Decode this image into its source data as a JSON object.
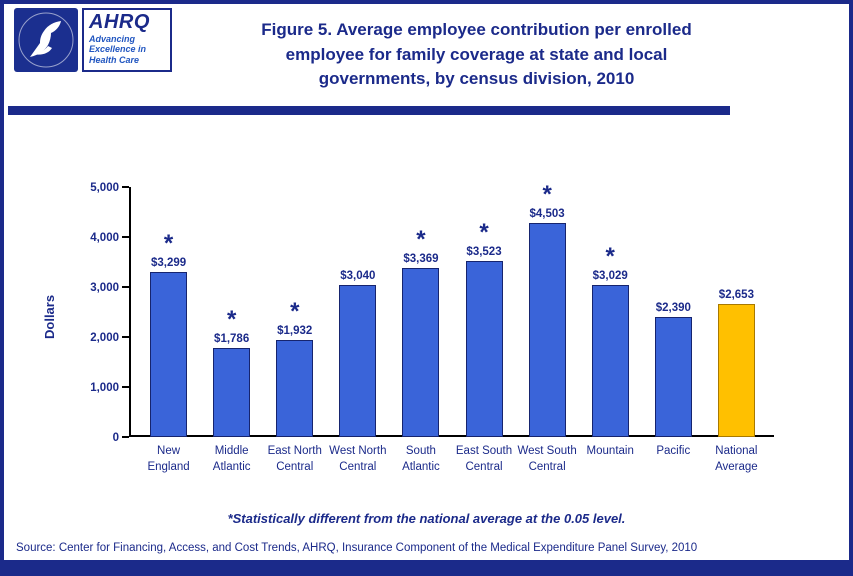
{
  "page": {
    "title": "Figure 5. Average employee contribution per enrolled\nemployee for family coverage at state and local\ngovernments, by census division, 2010",
    "footnote": "*Statistically different from the national average at the 0.05 level.",
    "source": "Source: Center for Financing, Access, and Cost Trends, AHRQ, Insurance Component of the Medical Expenditure Panel Survey, 2010"
  },
  "logos": {
    "hhs_icon": "hhs-eagle-seal",
    "ahrq": {
      "name": "AHRQ",
      "tagline": "Advancing\nExcellence in\nHealth Care"
    }
  },
  "chart_data": {
    "type": "bar",
    "title": "Figure 5. Average employee contribution per enrolled employee for family coverage at state and local governments, by census division, 2010",
    "xlabel": "",
    "ylabel": "Dollars",
    "ylim": [
      0,
      5000
    ],
    "yticks": [
      0,
      1000,
      2000,
      3000,
      4000,
      5000
    ],
    "ytick_labels": [
      "0",
      "1,000",
      "2,000",
      "3,000",
      "4,000",
      "5,000"
    ],
    "categories": [
      "New England",
      "Middle Atlantic",
      "East North Central",
      "West North Central",
      "South Atlantic",
      "East South Central",
      "West South Central",
      "Mountain",
      "Pacific",
      "National Average"
    ],
    "category_labels": [
      "New\nEngland",
      "Middle\nAtlantic",
      "East North\nCentral",
      "West North\nCentral",
      "South\nAtlantic",
      "East South\nCentral",
      "West South\nCentral",
      "Mountain",
      "Pacific",
      "National\nAverage"
    ],
    "values": [
      3299,
      1786,
      1932,
      3040,
      3369,
      3523,
      4503,
      3029,
      2390,
      2653
    ],
    "value_labels": [
      "$3,299",
      "$1,786",
      "$1,932",
      "$3,040",
      "$3,369",
      "$3,523",
      "$4,503",
      "$3,029",
      "$2,390",
      "$2,653"
    ],
    "significant": [
      true,
      true,
      true,
      false,
      true,
      true,
      true,
      true,
      false,
      false
    ],
    "significance_marker": "*",
    "bar_color": "#3a64d9",
    "highlight_index": 9,
    "highlight_color": "#ffc000",
    "grid": false,
    "legend": "none"
  },
  "colors": {
    "navy": "#1b2a8a",
    "bar_blue": "#3a64d9",
    "bar_gold": "#ffc000"
  }
}
